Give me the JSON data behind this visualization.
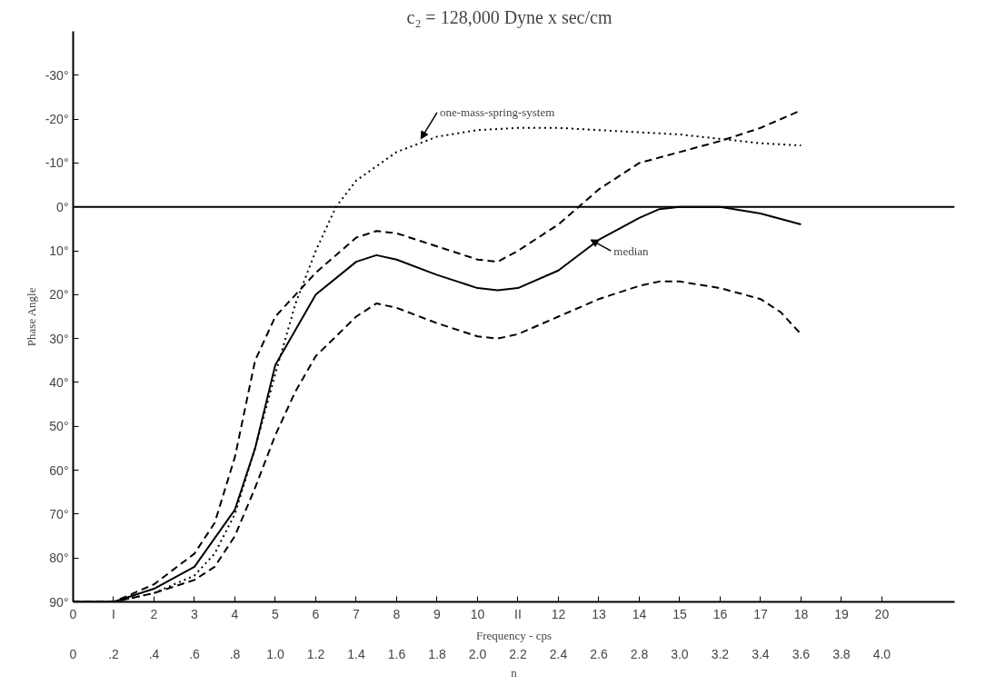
{
  "chart_data": {
    "type": "line",
    "title": "c₂  =  128,000 Dyne x sec/cm",
    "xlabel": "Frequency - cps",
    "ylabel": "Phase Angle",
    "x2label": "n",
    "xlim": [
      0,
      21.8
    ],
    "ylim": [
      90,
      -40
    ],
    "xticks": [
      0,
      {
        "value": 1,
        "label": "I"
      },
      2,
      3,
      4,
      5,
      6,
      7,
      8,
      9,
      10,
      {
        "value": 11,
        "label": "II"
      },
      12,
      13,
      14,
      15,
      16,
      17,
      18,
      19,
      20
    ],
    "yticks": [
      {
        "value": -30,
        "label": "-30°"
      },
      {
        "value": -20,
        "label": "-20°"
      },
      {
        "value": -10,
        "label": "-10°"
      },
      {
        "value": 0,
        "label": "0°"
      },
      {
        "value": 10,
        "label": "10°"
      },
      {
        "value": 20,
        "label": "20°"
      },
      {
        "value": 30,
        "label": "30°"
      },
      {
        "value": 40,
        "label": "40°"
      },
      {
        "value": 50,
        "label": "50°"
      },
      {
        "value": 60,
        "label": "60°"
      },
      {
        "value": 70,
        "label": "70°"
      },
      {
        "value": 80,
        "label": "80°"
      },
      {
        "value": 90,
        "label": "90°"
      }
    ],
    "x2lim": [
      0,
      4.36
    ],
    "x2ticks": [
      0,
      {
        "value": 0.2,
        "label": ".2"
      },
      {
        "value": 0.4,
        "label": ".4"
      },
      {
        "value": 0.6,
        "label": ".6"
      },
      {
        "value": 0.8,
        "label": ".8"
      },
      {
        "value": 1.0,
        "label": "1.0"
      },
      {
        "value": 1.2,
        "label": "1.2"
      },
      {
        "value": 1.4,
        "label": "1.4"
      },
      {
        "value": 1.6,
        "label": "1.6"
      },
      {
        "value": 1.8,
        "label": "1.8"
      },
      {
        "value": 2.0,
        "label": "2.0"
      },
      {
        "value": 2.2,
        "label": "2.2"
      },
      {
        "value": 2.4,
        "label": "2.4"
      },
      {
        "value": 2.6,
        "label": "2.6"
      },
      {
        "value": 2.8,
        "label": "2.8"
      },
      {
        "value": 3.0,
        "label": "3.0"
      },
      {
        "value": 3.2,
        "label": "3.2"
      },
      {
        "value": 3.4,
        "label": "3.4"
      },
      {
        "value": 3.6,
        "label": "3.6"
      },
      {
        "value": 3.8,
        "label": "3.8"
      },
      {
        "value": 4.0,
        "label": "4.0"
      }
    ],
    "grid": false,
    "series": [
      {
        "color": "#000000",
        "line_style": "solid",
        "x": [
          0,
          1,
          2,
          3,
          4,
          4.5,
          5,
          6,
          7,
          7.5,
          8,
          9,
          10,
          10.5,
          11,
          12,
          13,
          14,
          14.5,
          15,
          16,
          17,
          18
        ],
        "values": [
          90,
          90,
          87,
          82,
          69,
          55,
          36,
          20,
          12.5,
          11,
          12,
          15.5,
          18.5,
          19,
          18.5,
          14.5,
          7.5,
          2.5,
          0.5,
          0,
          0,
          1.5,
          4
        ]
      },
      {
        "color": "#000000",
        "line_style": "dashed",
        "x": [
          0,
          1,
          2,
          3,
          3.5,
          4,
          4.5,
          5,
          5.5,
          6,
          7,
          7.5,
          8,
          9,
          10,
          10.5,
          11,
          12,
          12.5,
          13,
          14,
          15,
          16,
          17,
          18
        ],
        "values": [
          90,
          90,
          86,
          79,
          72,
          57,
          35,
          25,
          20,
          15,
          7,
          5.5,
          6,
          9,
          12,
          12.5,
          10,
          4,
          0,
          -4,
          -10,
          -12.5,
          -15,
          -18,
          -22
        ]
      },
      {
        "color": "#000000",
        "line_style": "dashed",
        "x": [
          0,
          1,
          2,
          3,
          3.5,
          4,
          4.5,
          5,
          5.5,
          6,
          7,
          7.5,
          8,
          9,
          10,
          10.5,
          11,
          12,
          13,
          14,
          14.5,
          15,
          16,
          17,
          17.5,
          18
        ],
        "values": [
          90,
          90,
          88,
          85,
          82,
          75,
          64,
          52,
          42,
          34,
          25,
          22,
          23,
          26.5,
          29.5,
          30,
          29,
          25,
          21,
          18,
          17,
          17,
          18.5,
          21,
          24,
          29
        ]
      },
      {
        "color": "#000000",
        "line_style": "dotted",
        "x": [
          0,
          1,
          2,
          3,
          3.5,
          4,
          4.5,
          5,
          5.5,
          6,
          6.5,
          7,
          8,
          9,
          10,
          11,
          12,
          13,
          14,
          15,
          16,
          17,
          18
        ],
        "values": [
          90,
          90,
          88,
          84,
          79,
          70,
          55,
          38,
          22,
          10,
          0,
          -6,
          -12.5,
          -16,
          -17.5,
          -18,
          -18,
          -17.5,
          -17,
          -16.5,
          -15.5,
          -14.5,
          -14
        ]
      }
    ],
    "ref_lines": [
      {
        "axis": "y",
        "value": 0,
        "color": "#000000",
        "line_style": "solid"
      }
    ],
    "annotations": [
      {
        "text": "one-mass-spring-system",
        "x": 8.6,
        "y": -15.5
      },
      {
        "text": "median",
        "x": 12.8,
        "y": 7.5
      }
    ]
  }
}
